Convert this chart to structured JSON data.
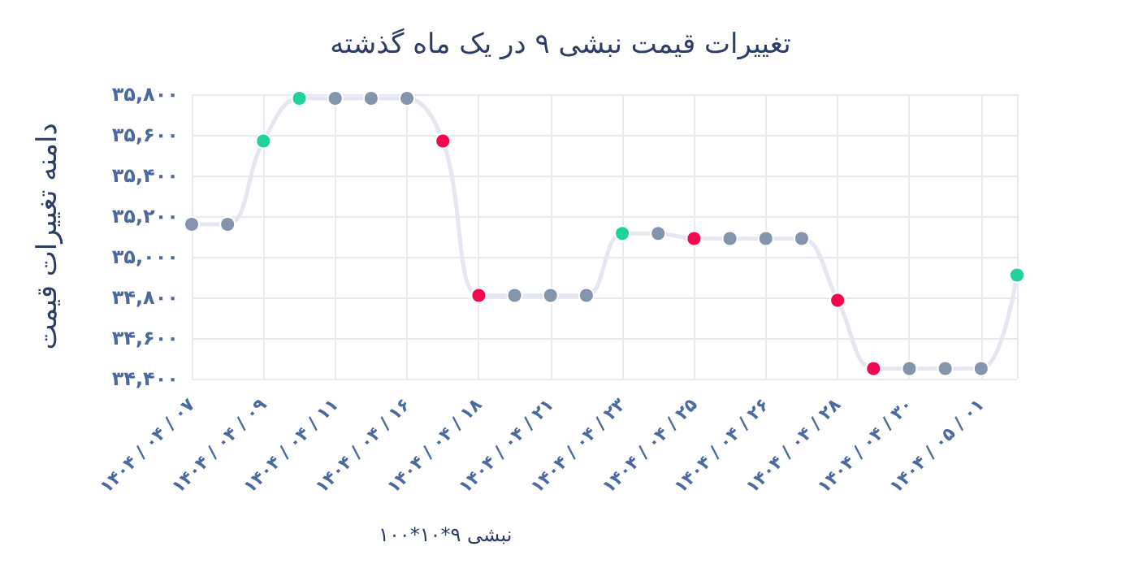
{
  "chart_data": {
    "type": "line",
    "title": "تغییرات قیمت نبشی ۹ در یک ماه گذشته",
    "ylabel": "دامنه تغییرات قیمت",
    "annotations": [
      "نبشی ۹*۱۰*۱۰۰"
    ],
    "categories": [
      "۱۴۰۴ / ۰۴ / ۰۷",
      null,
      "۱۴۰۴ / ۰۴ / ۰۹",
      null,
      "۱۴۰۴ / ۰۴ / ۱۱",
      null,
      "۱۴۰۴ / ۰۴ / ۱۶",
      null,
      "۱۴۰۴ / ۰۴ / ۱۸",
      null,
      "۱۴۰۴ / ۰۴ / ۲۱",
      null,
      "۱۴۰۴ / ۰۴ / ۲۳",
      null,
      "۱۴۰۴ / ۰۴ / ۲۵",
      null,
      "۱۴۰۴ / ۰۴ / ۲۶",
      null,
      "۱۴۰۴ / ۰۴ / ۲۸",
      null,
      "۱۴۰۴ / ۰۴ / ۳۰",
      null,
      "۱۴۰۴ / ۰۵ / ۰۱",
      null
    ],
    "series": [
      {
        "color": "#e4e7ef",
        "values": [
          35160,
          35160,
          35570,
          35780,
          35780,
          35780,
          35780,
          35570,
          34810,
          34810,
          34810,
          34810,
          35115,
          35115,
          35090,
          35090,
          35090,
          35090,
          34786,
          34450,
          34450,
          34450,
          34450,
          34910
        ],
        "colors": [
          "#8494ad",
          "#8494ad",
          "#1fd19b",
          "#1fd19b",
          "#8494ad",
          "#8494ad",
          "#8494ad",
          "#f2084f",
          "#f2084f",
          "#8494ad",
          "#8494ad",
          "#8494ad",
          "#1fd19b",
          "#8494ad",
          "#f2084f",
          "#8494ad",
          "#8494ad",
          "#8494ad",
          "#f2084f",
          "#f2084f",
          "#8494ad",
          "#8494ad",
          "#8494ad",
          "#1fd19b"
        ]
      }
    ],
    "ylim": [
      34400,
      35800
    ],
    "yticks": [
      {
        "value": 34400,
        "label": "۳۴,۴۰۰"
      },
      {
        "value": 34600,
        "label": "۳۴,۶۰۰"
      },
      {
        "value": 34800,
        "label": "۳۴,۸۰۰"
      },
      {
        "value": 35000,
        "label": "۳۵,۰۰۰"
      },
      {
        "value": 35200,
        "label": "۳۵,۲۰۰"
      },
      {
        "value": 35400,
        "label": "۳۵,۴۰۰"
      },
      {
        "value": 35600,
        "label": "۳۵,۶۰۰"
      },
      {
        "value": 35800,
        "label": "۳۵,۸۰۰"
      }
    ],
    "grid": true,
    "marker": "circle",
    "line_style": "solid"
  }
}
